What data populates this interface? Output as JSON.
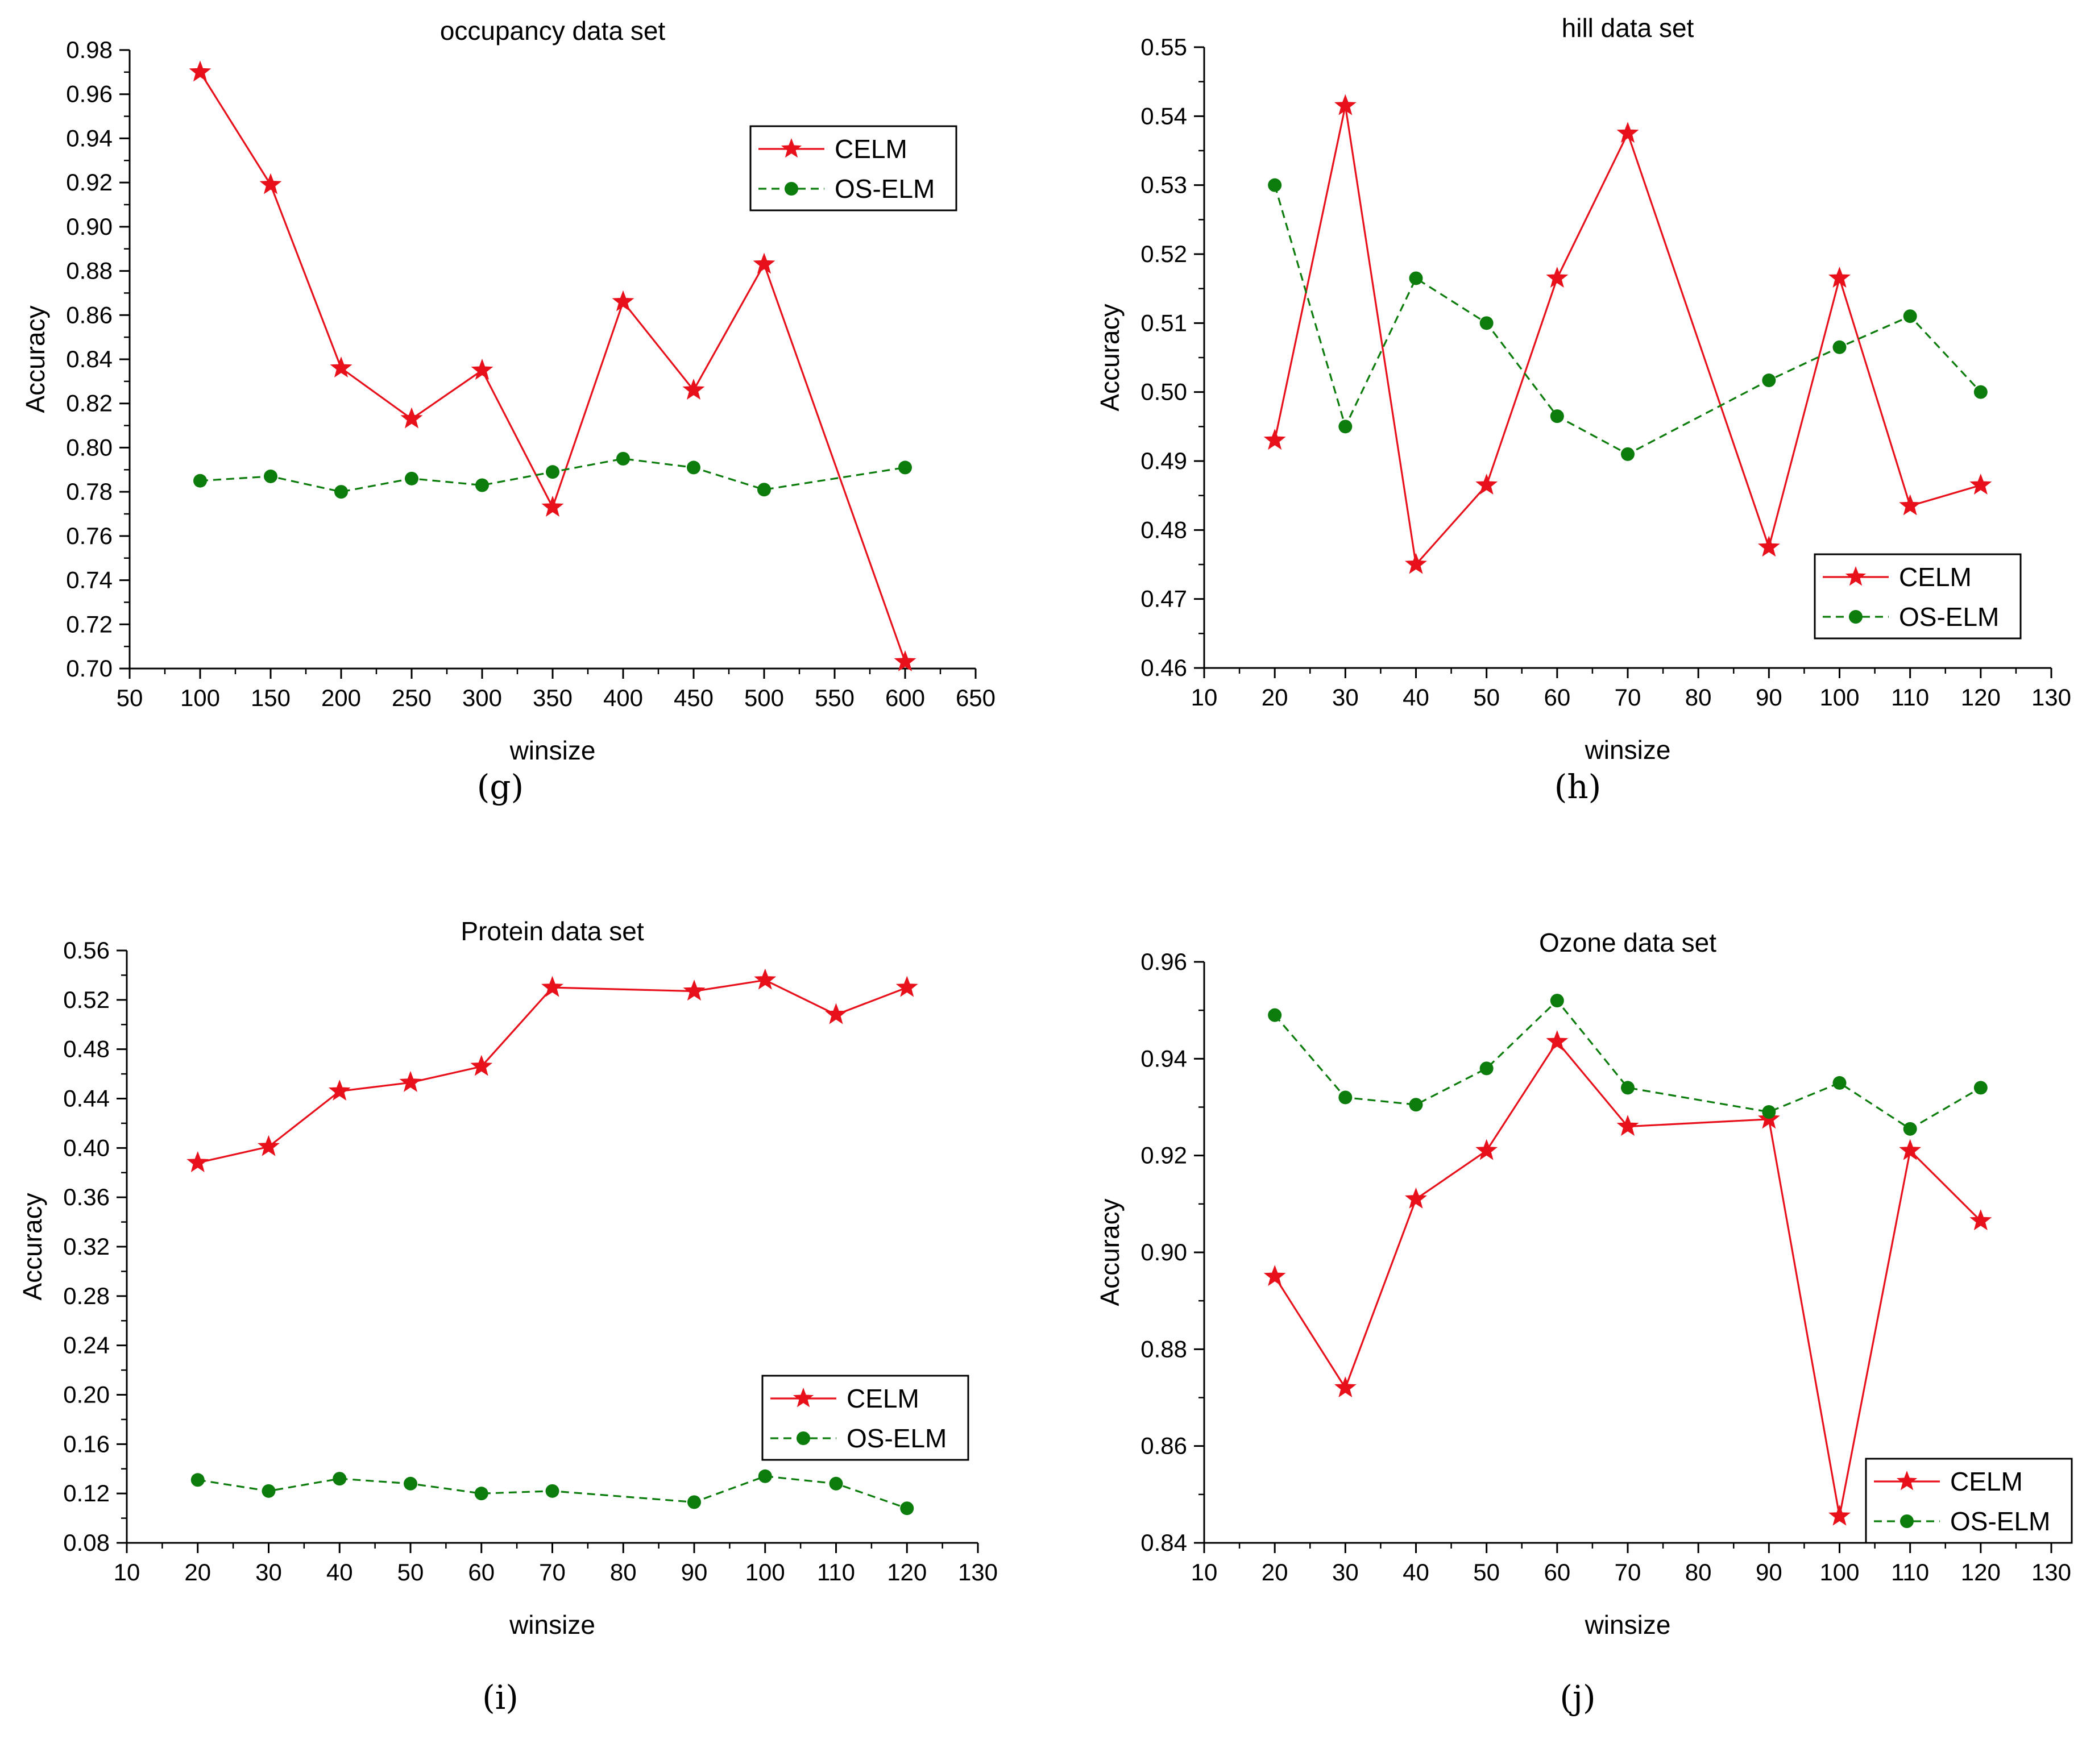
{
  "figure": {
    "colors": {
      "celm": "#e8101a",
      "oselm": "#0c7d0c",
      "axis": "#000000"
    }
  },
  "chart_data": [
    {
      "type": "line",
      "panel_label": "(g)",
      "title": "occupancy data set",
      "xlabel": "winsize",
      "ylabel": "Accuracy",
      "xlim": [
        50,
        650
      ],
      "ylim": [
        0.7,
        0.98
      ],
      "xticks": [
        50,
        100,
        150,
        200,
        250,
        300,
        350,
        400,
        450,
        500,
        550,
        600,
        650
      ],
      "yticks": [
        0.7,
        0.72,
        0.74,
        0.76,
        0.78,
        0.8,
        0.82,
        0.84,
        0.86,
        0.88,
        0.9,
        0.92,
        0.94,
        0.96,
        0.98
      ],
      "ydecimals": 2,
      "legend_position": "top-right",
      "series": [
        {
          "name": "CELM",
          "style": "solid-star",
          "x": [
            100,
            150,
            200,
            250,
            300,
            350,
            400,
            450,
            500,
            600
          ],
          "y": [
            0.97,
            0.919,
            0.836,
            0.813,
            0.835,
            0.773,
            0.866,
            0.826,
            0.883,
            0.703
          ]
        },
        {
          "name": "OS-ELM",
          "style": "dashed-circle",
          "x": [
            100,
            150,
            200,
            250,
            300,
            350,
            400,
            450,
            500,
            600
          ],
          "y": [
            0.785,
            0.787,
            0.78,
            0.786,
            0.783,
            0.789,
            0.795,
            0.791,
            0.781,
            0.791
          ]
        }
      ]
    },
    {
      "type": "line",
      "panel_label": "(h)",
      "title": "hill data set",
      "xlabel": "winsize",
      "ylabel": "Accuracy",
      "xlim": [
        10,
        130
      ],
      "ylim": [
        0.46,
        0.55
      ],
      "xticks": [
        10,
        20,
        30,
        40,
        50,
        60,
        70,
        80,
        90,
        100,
        110,
        120,
        130
      ],
      "yticks": [
        0.46,
        0.47,
        0.48,
        0.49,
        0.5,
        0.51,
        0.52,
        0.53,
        0.54,
        0.55
      ],
      "ydecimals": 2,
      "legend_position": "bottom-right",
      "series": [
        {
          "name": "CELM",
          "style": "solid-star",
          "x": [
            20,
            30,
            40,
            50,
            60,
            70,
            90,
            100,
            110,
            120
          ],
          "y": [
            0.493,
            0.5415,
            0.475,
            0.4865,
            0.5165,
            0.5375,
            0.4775,
            0.5165,
            0.4835,
            0.4865
          ]
        },
        {
          "name": "OS-ELM",
          "style": "dashed-circle",
          "x": [
            20,
            30,
            40,
            50,
            60,
            70,
            90,
            100,
            110,
            120
          ],
          "y": [
            0.53,
            0.495,
            0.5165,
            0.51,
            0.4965,
            0.491,
            0.5017,
            0.5065,
            0.511,
            0.5
          ]
        }
      ]
    },
    {
      "type": "line",
      "panel_label": "(i)",
      "title": "Protein data set",
      "xlabel": "winsize",
      "ylabel": "Accuracy",
      "xlim": [
        10,
        130
      ],
      "ylim": [
        0.08,
        0.56
      ],
      "xticks": [
        10,
        20,
        30,
        40,
        50,
        60,
        70,
        80,
        90,
        100,
        110,
        120,
        130
      ],
      "yticks": [
        0.08,
        0.12,
        0.16,
        0.2,
        0.24,
        0.28,
        0.32,
        0.36,
        0.4,
        0.44,
        0.48,
        0.52,
        0.56
      ],
      "ydecimals": 2,
      "legend_position": "bottom-right",
      "series": [
        {
          "name": "CELM",
          "style": "solid-star",
          "x": [
            20,
            30,
            40,
            50,
            60,
            70,
            90,
            100,
            110,
            120
          ],
          "y": [
            0.388,
            0.401,
            0.446,
            0.453,
            0.466,
            0.53,
            0.527,
            0.536,
            0.508,
            0.53
          ]
        },
        {
          "name": "OS-ELM",
          "style": "dashed-circle",
          "x": [
            20,
            30,
            40,
            50,
            60,
            70,
            90,
            100,
            110,
            120
          ],
          "y": [
            0.131,
            0.122,
            0.132,
            0.128,
            0.12,
            0.122,
            0.113,
            0.134,
            0.128,
            0.108
          ]
        }
      ]
    },
    {
      "type": "line",
      "panel_label": "(j)",
      "title": "Ozone data set",
      "xlabel": "winsize",
      "ylabel": "Accuracy",
      "xlim": [
        10,
        130
      ],
      "ylim": [
        0.84,
        0.96
      ],
      "xticks": [
        10,
        20,
        30,
        40,
        50,
        60,
        70,
        80,
        90,
        100,
        110,
        120,
        130
      ],
      "yticks": [
        0.84,
        0.86,
        0.88,
        0.9,
        0.92,
        0.94,
        0.96
      ],
      "ydecimals": 2,
      "legend_position": "bottom-right",
      "series": [
        {
          "name": "CELM",
          "style": "solid-star",
          "x": [
            20,
            30,
            40,
            50,
            60,
            70,
            90,
            100,
            110,
            120
          ],
          "y": [
            0.895,
            0.872,
            0.911,
            0.921,
            0.9435,
            0.926,
            0.9275,
            0.8455,
            0.921,
            0.9065
          ]
        },
        {
          "name": "OS-ELM",
          "style": "dashed-circle",
          "x": [
            20,
            30,
            40,
            50,
            60,
            70,
            90,
            100,
            110,
            120
          ],
          "y": [
            0.949,
            0.932,
            0.9305,
            0.938,
            0.952,
            0.934,
            0.929,
            0.935,
            0.9255,
            0.934
          ]
        }
      ]
    }
  ]
}
